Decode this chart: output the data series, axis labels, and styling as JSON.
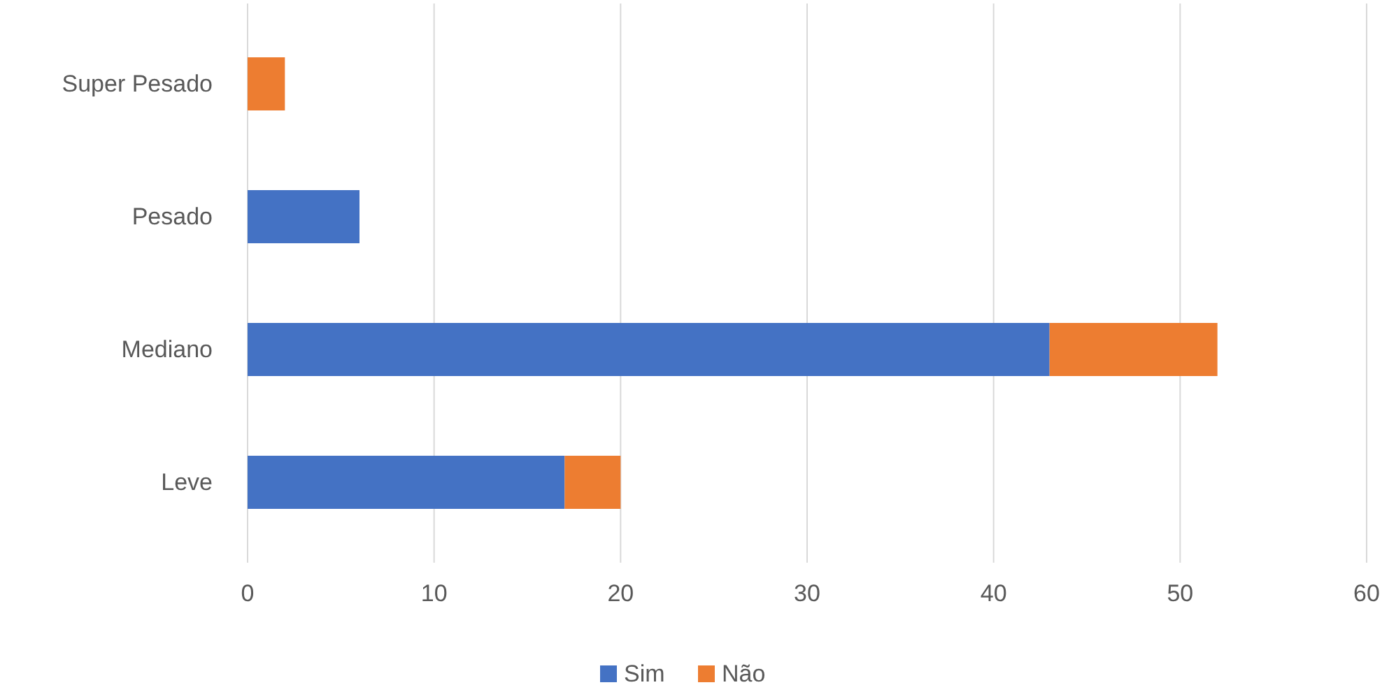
{
  "chart_data": {
    "type": "bar",
    "orientation": "horizontal",
    "stacked": true,
    "categories": [
      "Super Pesado",
      "Pesado",
      "Mediano",
      "Leve"
    ],
    "series": [
      {
        "name": "Sim",
        "color": "#4472c4",
        "values": [
          0,
          6,
          43,
          17
        ]
      },
      {
        "name": "Não",
        "color": "#ed7d31",
        "values": [
          2,
          0,
          9,
          3
        ]
      }
    ],
    "xlim": [
      0,
      60
    ],
    "xticks": [
      0,
      10,
      20,
      30,
      40,
      50,
      60
    ],
    "grid": "x",
    "legend": "bottom"
  }
}
